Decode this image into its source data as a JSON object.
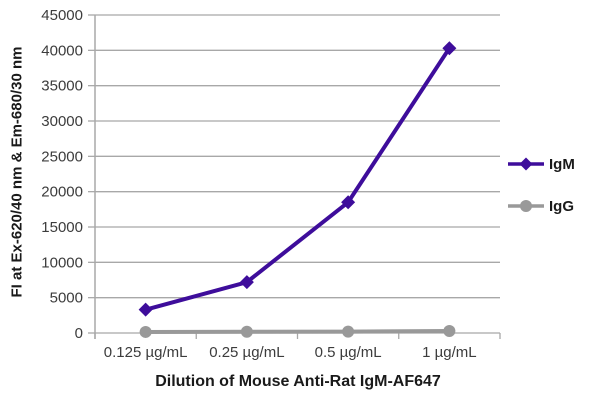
{
  "chart_data": {
    "type": "line",
    "title": "",
    "xlabel": "Dilution of Mouse Anti-Rat IgM-AF647",
    "ylabel": "FI at Ex-620/40 nm & Em-680/30 nm",
    "categories": [
      "0.125 µg/mL",
      "0.25 µg/mL",
      "0.5 µg/mL",
      "1 µg/mL"
    ],
    "series": [
      {
        "id": "igm",
        "name": "IgM",
        "values": [
          3300,
          7200,
          18500,
          40300
        ],
        "color": "#3e0d9b",
        "marker": "diamond"
      },
      {
        "id": "igg",
        "name": "IgG",
        "values": [
          150,
          170,
          200,
          280
        ],
        "color": "#999999",
        "marker": "circle"
      }
    ],
    "ylim": [
      0,
      45000
    ],
    "ytick_step": 5000,
    "grid": true,
    "legend_position": "right",
    "colors": {
      "grid": "#a8a8a8",
      "tick_text": "#3c3c3c",
      "title_text": "#1a1a1a"
    }
  }
}
